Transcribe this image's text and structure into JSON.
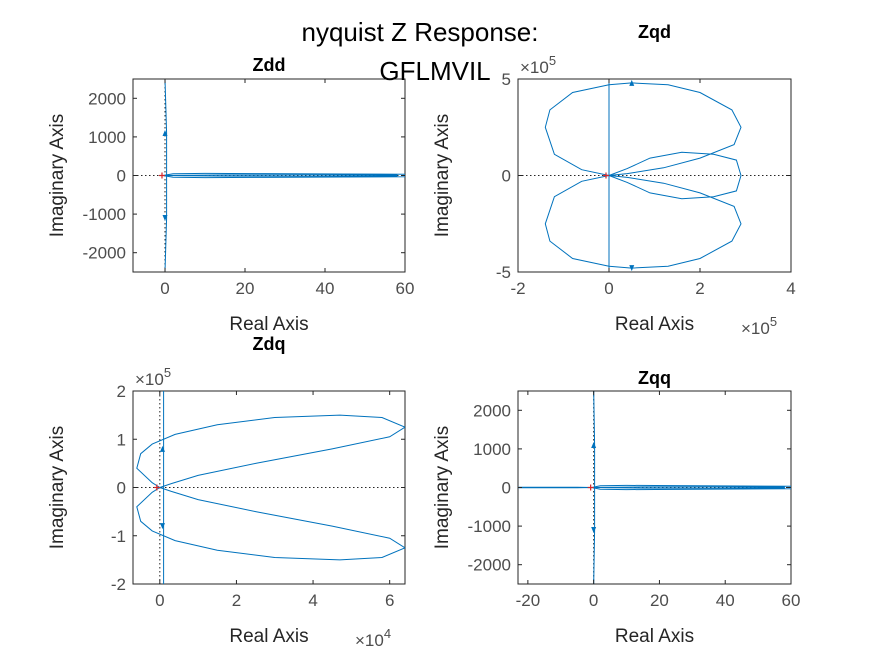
{
  "figure": {
    "suptitle_line1": "nyquist Z Response:",
    "suptitle_line2": "GFLMVIL"
  },
  "chart_data": [
    {
      "id": "zdd",
      "type": "line",
      "title": "Zdd",
      "xlabel": "Real Axis",
      "ylabel": "Imaginary Axis",
      "xlim": [
        -8,
        60
      ],
      "ylim": [
        -2500,
        2500
      ],
      "xticks": [
        0,
        20,
        40,
        60
      ],
      "xtick_labels": [
        "0",
        "20",
        "40",
        "60"
      ],
      "yticks": [
        -2000,
        -1000,
        0,
        1000,
        2000
      ],
      "ytick_labels": [
        "-2000",
        "-1000",
        "0",
        "1000",
        "2000"
      ],
      "x_exponent": "",
      "y_exponent": "",
      "series": [
        {
          "x": [
            0,
            0.4,
            0.4,
            0
          ],
          "y": [
            -2500,
            -1100,
            1100,
            2500
          ]
        },
        {
          "x": [
            -0.5,
            2,
            10,
            25,
            45,
            60,
            60,
            45,
            25,
            10,
            2,
            -0.5
          ],
          "y": [
            0,
            45,
            55,
            50,
            40,
            30,
            -30,
            -40,
            -50,
            -55,
            -45,
            0
          ]
        },
        {
          "x": [
            -0.5,
            15,
            35,
            58,
            58,
            35,
            15,
            -0.5
          ],
          "y": [
            0,
            15,
            18,
            12,
            -12,
            -18,
            -15,
            0
          ]
        }
      ],
      "markers": [
        {
          "x": 0,
          "y": 1100
        },
        {
          "x": 0,
          "y": -1100
        }
      ]
    },
    {
      "id": "zqd",
      "type": "line",
      "title": "Zqd",
      "xlabel": "Real Axis",
      "ylabel": "Imaginary Axis",
      "xlim": [
        -200000,
        400000
      ],
      "ylim": [
        -500000,
        500000
      ],
      "xticks": [
        -200000,
        0,
        200000,
        400000
      ],
      "xtick_labels": [
        "-2",
        "0",
        "2",
        "4"
      ],
      "yticks": [
        -500000,
        0,
        500000
      ],
      "ytick_labels": [
        "-5",
        "0",
        "5"
      ],
      "x_exponent": "5",
      "y_exponent": "5",
      "series": [
        {
          "x": [
            0,
            0,
            0
          ],
          "y": [
            -500000,
            0,
            500000
          ]
        },
        {
          "x": [
            0,
            40000,
            90000,
            160000,
            230000,
            280000,
            290000,
            280000,
            230000,
            160000,
            90000,
            40000,
            0
          ],
          "y": [
            0,
            36000,
            90000,
            120000,
            110000,
            80000,
            0,
            -80000,
            -110000,
            -120000,
            -90000,
            -36000,
            0
          ]
        },
        {
          "x": [
            0,
            -60000,
            -120000,
            -140000,
            -130000,
            -80000,
            0,
            50000,
            130000,
            200000,
            270000,
            290000,
            275000,
            200000,
            120000,
            40000,
            0
          ],
          "y": [
            0,
            30000,
            110000,
            250000,
            340000,
            430000,
            470000,
            480000,
            470000,
            430000,
            340000,
            250000,
            160000,
            90000,
            40000,
            10000,
            0
          ]
        },
        {
          "x": [
            0,
            -60000,
            -120000,
            -140000,
            -130000,
            -80000,
            0,
            50000,
            130000,
            200000,
            270000,
            290000,
            275000,
            200000,
            120000,
            40000,
            0
          ],
          "y": [
            0,
            -30000,
            -110000,
            -250000,
            -340000,
            -430000,
            -470000,
            -480000,
            -470000,
            -430000,
            -340000,
            -250000,
            -160000,
            -90000,
            -40000,
            -10000,
            0
          ]
        }
      ],
      "markers": [
        {
          "x": 50000,
          "y": 480000
        },
        {
          "x": 50000,
          "y": -480000
        }
      ]
    },
    {
      "id": "zdq",
      "type": "line",
      "title": "Zdq",
      "xlabel": "Real Axis",
      "ylabel": "Imaginary Axis",
      "xlim": [
        -7000,
        64000
      ],
      "ylim": [
        -200000,
        200000
      ],
      "xticks": [
        0,
        20000,
        40000,
        60000
      ],
      "xtick_labels": [
        "0",
        "2",
        "4",
        "6"
      ],
      "yticks": [
        -200000,
        -100000,
        0,
        100000,
        200000
      ],
      "ytick_labels": [
        "-2",
        "-1",
        "0",
        "1",
        "2"
      ],
      "x_exponent": "4",
      "y_exponent": "5",
      "series": [
        {
          "x": [
            1000,
            1000,
            1000
          ],
          "y": [
            -200000,
            0,
            200000
          ]
        },
        {
          "x": [
            0,
            -2000,
            -6000,
            -5000,
            -2000,
            4000,
            15000,
            30000,
            47000,
            58000,
            64000,
            60000,
            45000,
            25000,
            10000,
            3000,
            0
          ],
          "y": [
            0,
            10000,
            40000,
            70000,
            90000,
            110000,
            130000,
            145000,
            150000,
            145000,
            125000,
            105000,
            80000,
            50000,
            25000,
            8000,
            0
          ]
        },
        {
          "x": [
            0,
            -2000,
            -6000,
            -5000,
            -2000,
            4000,
            15000,
            30000,
            47000,
            58000,
            64000,
            60000,
            45000,
            25000,
            10000,
            3000,
            0
          ],
          "y": [
            0,
            -10000,
            -40000,
            -70000,
            -90000,
            -110000,
            -130000,
            -145000,
            -150000,
            -145000,
            -125000,
            -105000,
            -80000,
            -50000,
            -25000,
            -8000,
            0
          ]
        }
      ],
      "markers": [
        {
          "x": 700,
          "y": 80000
        },
        {
          "x": 700,
          "y": -80000
        }
      ]
    },
    {
      "id": "zqq",
      "type": "line",
      "title": "Zqq",
      "xlabel": "Real Axis",
      "ylabel": "Imaginary Axis",
      "xlim": [
        -23,
        60
      ],
      "ylim": [
        -2500,
        2500
      ],
      "xticks": [
        -20,
        0,
        20,
        40,
        60
      ],
      "xtick_labels": [
        "-20",
        "0",
        "20",
        "40",
        "60"
      ],
      "yticks": [
        -2000,
        -1000,
        0,
        1000,
        2000
      ],
      "ytick_labels": [
        "-2000",
        "-1000",
        "0",
        "1000",
        "2000"
      ],
      "x_exponent": "",
      "y_exponent": "",
      "series": [
        {
          "x": [
            0,
            0.3,
            0.3,
            0
          ],
          "y": [
            -2500,
            -1100,
            1100,
            2500
          ]
        },
        {
          "x": [
            -23,
            -5,
            -0.5,
            2,
            10,
            25,
            45,
            60,
            60,
            45,
            25,
            10,
            2,
            -0.5,
            -5,
            -23
          ],
          "y": [
            8,
            6,
            0,
            45,
            55,
            50,
            40,
            30,
            -30,
            -40,
            -50,
            -55,
            -45,
            0,
            -6,
            -8
          ]
        },
        {
          "x": [
            -0.5,
            15,
            35,
            58,
            58,
            35,
            15,
            -0.5
          ],
          "y": [
            0,
            15,
            18,
            12,
            -12,
            -18,
            -15,
            0
          ]
        }
      ],
      "markers": [
        {
          "x": 0,
          "y": 1100
        },
        {
          "x": 0,
          "y": -1100
        }
      ]
    }
  ]
}
